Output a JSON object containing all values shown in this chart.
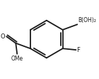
{
  "bg_color": "#ffffff",
  "line_color": "#1a1a1a",
  "line_width": 1.3,
  "b_label": "B(OH)₂",
  "f_label": "F",
  "o_label": "O",
  "ome_label": "OMe",
  "figsize": [
    1.4,
    1.11
  ],
  "dpi": 100
}
